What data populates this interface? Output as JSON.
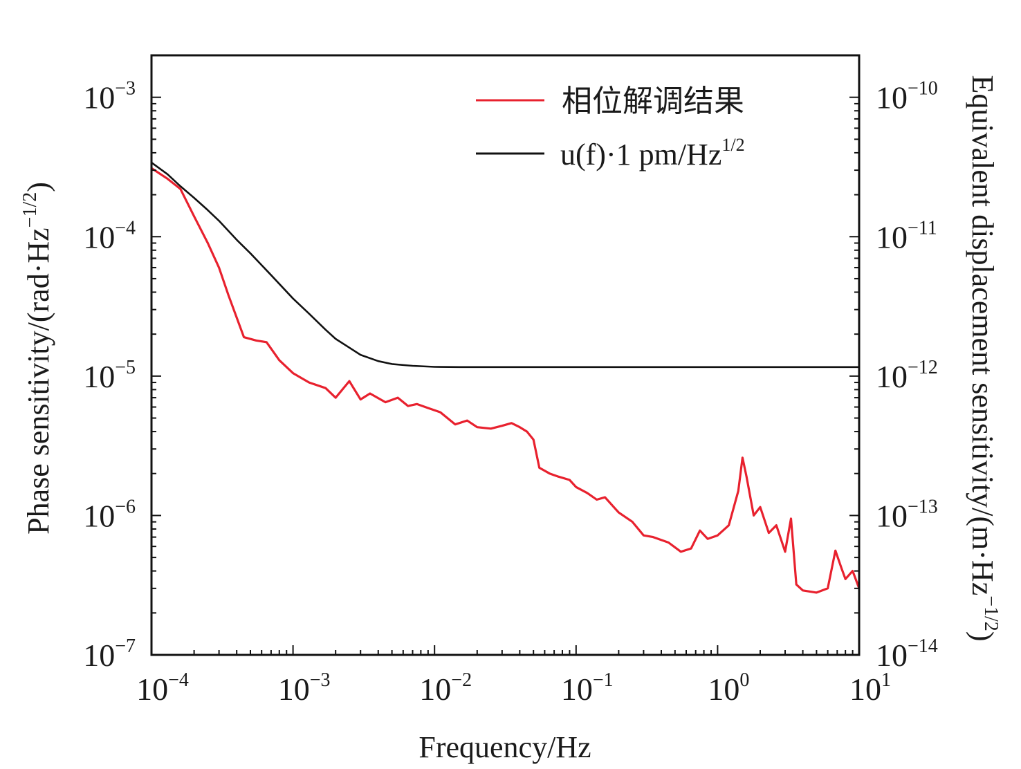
{
  "chart_data": {
    "type": "line",
    "xscale": "log",
    "yscale": "log",
    "xlabel": "Frequency/Hz",
    "ylabel": "Phase sensitivity/(rad·Hz^-1/2)",
    "ylabel_parts": {
      "main": "Phase sensitivity/(rad·Hz",
      "sup": "−1/2",
      "close": ")"
    },
    "y2label_parts": {
      "main": "Equivalent displacement sensitivity/(m·Hz",
      "sup": "−1/2",
      "close": ")"
    },
    "xlim": [
      0.0001,
      10
    ],
    "ylim": [
      1e-07,
      0.002
    ],
    "y2lim": [
      1e-14,
      2e-10
    ],
    "xticks": [
      {
        "base": "10",
        "exp": "−4",
        "value": 0.0001
      },
      {
        "base": "10",
        "exp": "−3",
        "value": 0.001
      },
      {
        "base": "10",
        "exp": "−2",
        "value": 0.01
      },
      {
        "base": "10",
        "exp": "−1",
        "value": 0.1
      },
      {
        "base": "10",
        "exp": "0",
        "value": 1
      },
      {
        "base": "10",
        "exp": "1",
        "value": 10
      }
    ],
    "yticks": [
      {
        "base": "10",
        "exp": "−3",
        "value": 0.001
      },
      {
        "base": "10",
        "exp": "−4",
        "value": 0.0001
      },
      {
        "base": "10",
        "exp": "−5",
        "value": 1e-05
      },
      {
        "base": "10",
        "exp": "−6",
        "value": 1e-06
      },
      {
        "base": "10",
        "exp": "−7",
        "value": 1e-07
      }
    ],
    "y2ticks": [
      {
        "base": "10",
        "exp": "−10",
        "value": 1e-10
      },
      {
        "base": "10",
        "exp": "−11",
        "value": 1e-11
      },
      {
        "base": "10",
        "exp": "−12",
        "value": 1e-12
      },
      {
        "base": "10",
        "exp": "−13",
        "value": 1e-13
      },
      {
        "base": "10",
        "exp": "−14",
        "value": 1e-14
      }
    ],
    "legend_position": "top-right",
    "series": [
      {
        "name": "相位解调结果",
        "color": "#e8212e",
        "x": [
          0.0001,
          0.00013,
          0.00016,
          0.0002,
          0.00025,
          0.0003,
          0.00035,
          0.00045,
          0.00055,
          0.00065,
          0.0008,
          0.001,
          0.0013,
          0.0017,
          0.002,
          0.0025,
          0.003,
          0.0035,
          0.0045,
          0.0055,
          0.0065,
          0.0075,
          0.009,
          0.011,
          0.014,
          0.017,
          0.02,
          0.025,
          0.03,
          0.035,
          0.04,
          0.045,
          0.05,
          0.055,
          0.065,
          0.075,
          0.09,
          0.1,
          0.12,
          0.14,
          0.16,
          0.2,
          0.25,
          0.3,
          0.35,
          0.45,
          0.55,
          0.65,
          0.75,
          0.85,
          1.0,
          1.2,
          1.4,
          1.5,
          1.6,
          1.8,
          2.0,
          2.3,
          2.6,
          3.0,
          3.3,
          3.6,
          4.0,
          5.0,
          6.0,
          6.8,
          7.5,
          8.0,
          9.0,
          10.0
        ],
        "y": [
          0.00031,
          0.00026,
          0.00022,
          0.00014,
          9e-05,
          6e-05,
          3.8e-05,
          1.9e-05,
          1.8e-05,
          1.75e-05,
          1.3e-05,
          1.05e-05,
          9e-06,
          8.2e-06,
          7e-06,
          9.2e-06,
          6.8e-06,
          7.5e-06,
          6.5e-06,
          7e-06,
          6.1e-06,
          6.3e-06,
          5.9e-06,
          5.5e-06,
          4.5e-06,
          4.8e-06,
          4.3e-06,
          4.2e-06,
          4.4e-06,
          4.6e-06,
          4.3e-06,
          4e-06,
          3.5e-06,
          2.2e-06,
          2e-06,
          1.9e-06,
          1.8e-06,
          1.6e-06,
          1.45e-06,
          1.3e-06,
          1.35e-06,
          1.05e-06,
          9e-07,
          7.2e-07,
          7e-07,
          6.4e-07,
          5.5e-07,
          5.8e-07,
          7.8e-07,
          6.8e-07,
          7.2e-07,
          8.5e-07,
          1.5e-06,
          2.6e-06,
          1.9e-06,
          1e-06,
          1.15e-06,
          7.5e-07,
          8.5e-07,
          5.5e-07,
          9.5e-07,
          3.2e-07,
          2.9e-07,
          2.8e-07,
          3e-07,
          5.6e-07,
          4.2e-07,
          3.5e-07,
          4e-07,
          3e-07
        ]
      },
      {
        "name": "u(f)·1 pm/Hz^1/2",
        "color": "#111111",
        "x": [
          0.0001,
          0.00013,
          0.00016,
          0.0002,
          0.00025,
          0.0003,
          0.0004,
          0.0005,
          0.0007,
          0.001,
          0.0013,
          0.0017,
          0.002,
          0.0025,
          0.003,
          0.004,
          0.005,
          0.007,
          0.01,
          0.015,
          0.02,
          0.05,
          0.1,
          1.0,
          10.0
        ],
        "y": [
          0.00034,
          0.00028,
          0.00023,
          0.00019,
          0.000155,
          0.00013,
          9.5e-05,
          7.6e-05,
          5.3e-05,
          3.6e-05,
          2.8e-05,
          2.15e-05,
          1.85e-05,
          1.6e-05,
          1.42e-05,
          1.28e-05,
          1.22e-05,
          1.185e-05,
          1.165e-05,
          1.16e-05,
          1.16e-05,
          1.16e-05,
          1.16e-05,
          1.16e-05,
          1.16e-05
        ]
      }
    ]
  },
  "legend": {
    "items": [
      {
        "label": "相位解调结果",
        "color": "#e8212e"
      },
      {
        "label_main": "u(f)·1 pm/Hz",
        "label_sup": "1/2",
        "color": "#111111"
      }
    ]
  }
}
